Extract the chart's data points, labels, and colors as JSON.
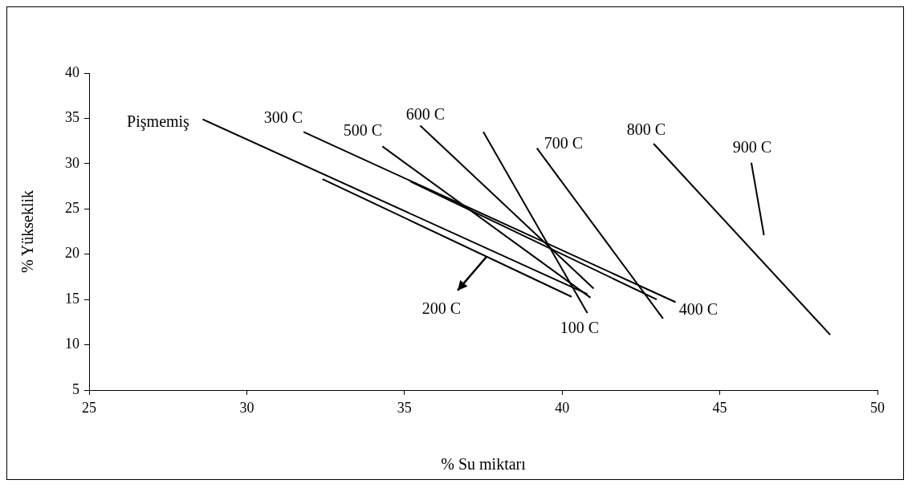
{
  "chart_data": {
    "type": "line",
    "xlabel": "% Su miktarı",
    "ylabel": "% Yükseklik",
    "xlim": [
      25,
      50
    ],
    "xticks": [
      25,
      30,
      35,
      40,
      45,
      50
    ],
    "ylim": [
      5,
      40
    ],
    "yticks": [
      5,
      10,
      15,
      20,
      25,
      30,
      35,
      40
    ],
    "grid": false,
    "legend": false,
    "marker": "none",
    "line_style": "solid",
    "series": [
      {
        "color": "#000000",
        "x": [
          28.6,
          40.8
        ],
        "values": [
          34.9,
          15.6
        ]
      },
      {
        "color": "#000000",
        "x": [
          32.4,
          40.3
        ],
        "values": [
          28.3,
          15.3
        ]
      },
      {
        "color": "#000000",
        "x": [
          31.8,
          43.6
        ],
        "values": [
          33.5,
          14.7
        ]
      },
      {
        "color": "#000000",
        "x": [
          35.2,
          43.0
        ],
        "values": [
          28.0,
          15.0
        ]
      },
      {
        "color": "#000000",
        "x": [
          34.3,
          40.9
        ],
        "values": [
          31.9,
          15.2
        ]
      },
      {
        "color": "#000000",
        "x": [
          35.5,
          41.0
        ],
        "values": [
          34.2,
          16.2
        ]
      },
      {
        "color": "#000000",
        "x": [
          37.5,
          40.8
        ],
        "values": [
          33.5,
          13.5
        ]
      },
      {
        "color": "#000000",
        "x": [
          39.2,
          43.2
        ],
        "values": [
          31.7,
          12.9
        ]
      },
      {
        "color": "#000000",
        "x": [
          42.9,
          48.5
        ],
        "values": [
          32.2,
          11.1
        ]
      },
      {
        "color": "#000000",
        "x": [
          46.0,
          46.4
        ],
        "values": [
          30.1,
          22.1
        ]
      }
    ],
    "annotations": [
      {
        "text": "200 C",
        "x": 37.6,
        "y": 19.7
      },
      "Pişmemiş",
      "300 C",
      "500 C",
      "600 C",
      "700 C",
      "800 C",
      "900 C",
      "100 C",
      "400 C"
    ]
  }
}
